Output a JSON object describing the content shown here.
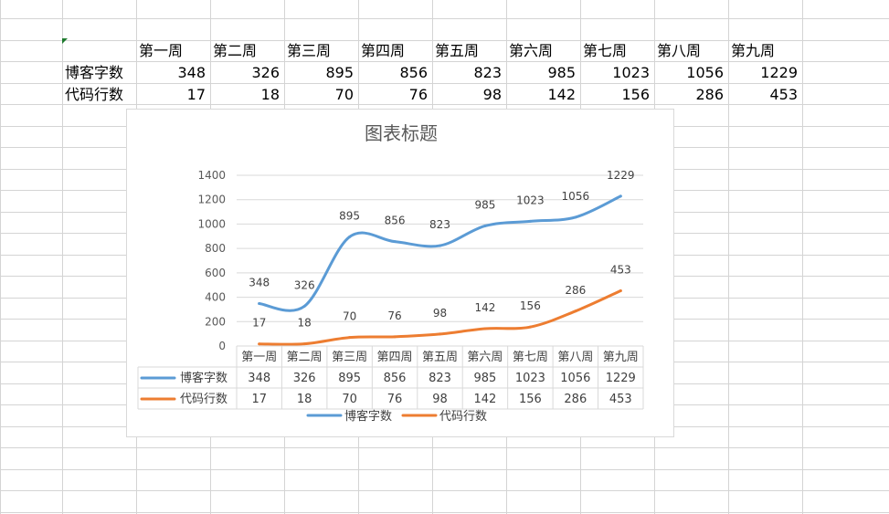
{
  "sheet": {
    "header_row": [
      "第一周",
      "第二周",
      "第三周",
      "第四周",
      "第五周",
      "第六周",
      "第七周",
      "第八周",
      "第九周"
    ],
    "rows": [
      {
        "label": "博客字数",
        "values": [
          348,
          326,
          895,
          856,
          823,
          985,
          1023,
          1056,
          1229
        ]
      },
      {
        "label": "代码行数",
        "values": [
          17,
          18,
          70,
          76,
          98,
          142,
          156,
          286,
          453
        ]
      }
    ]
  },
  "chart_data": {
    "type": "line",
    "title": "图表标题",
    "categories": [
      "第一周",
      "第二周",
      "第三周",
      "第四周",
      "第五周",
      "第六周",
      "第七周",
      "第八周",
      "第九周"
    ],
    "series": [
      {
        "name": "博客字数",
        "color": "#5b9bd5",
        "values": [
          348,
          326,
          895,
          856,
          823,
          985,
          1023,
          1056,
          1229
        ]
      },
      {
        "name": "代码行数",
        "color": "#ed7d31",
        "values": [
          17,
          18,
          70,
          76,
          98,
          142,
          156,
          286,
          453
        ]
      }
    ],
    "ylim": [
      0,
      1400
    ],
    "yticks": [
      0,
      200,
      400,
      600,
      800,
      1000,
      1200,
      1400
    ],
    "grid": true,
    "data_labels": true,
    "data_table": true,
    "legend_position": "bottom"
  }
}
